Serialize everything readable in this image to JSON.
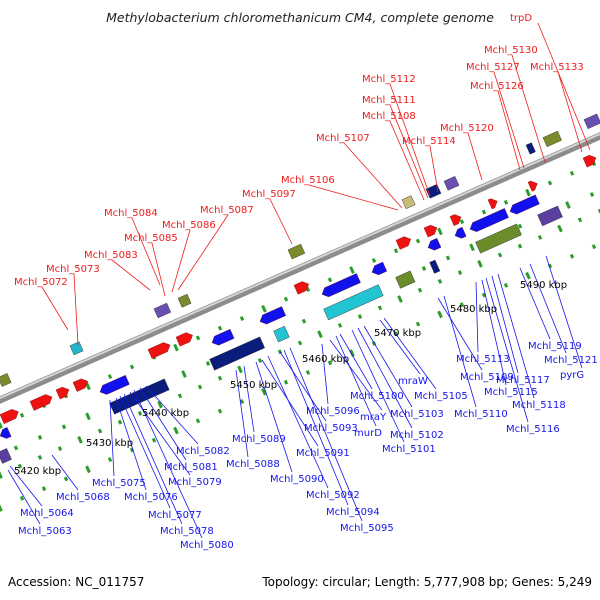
{
  "title": "Methylobacterium chloromethanicum CM4, complete genome",
  "footer": {
    "accession": "Accession: NC_011757",
    "summary": "Topology: circular; Length: 5,777,908 bp; Genes: 5,249"
  },
  "colors": {
    "forward_label": "#ee1c1c",
    "reverse_label": "#1515ee",
    "forward_gene": "#ee1111",
    "reverse_gene": "#1111ee",
    "dot_green": "#2a9d2a",
    "backbone": "#8c8c8c"
  },
  "kbp_labels": [
    "5420 kbp",
    "5430 kbp",
    "5440 kbp",
    "5450 kbp",
    "5460 kbp",
    "5470 kbp",
    "5480 kbp",
    "5490 kbp"
  ],
  "forward_gene_labels": [
    "Mchl_5072",
    "Mchl_5073",
    "Mchl_5083",
    "Mchl_5084",
    "Mchl_5085",
    "Mchl_5086",
    "Mchl_5087",
    "Mchl_5097",
    "Mchl_5106",
    "Mchl_5107",
    "Mchl_5108",
    "Mchl_5111",
    "Mchl_5112",
    "Mchl_5114",
    "Mchl_5120",
    "Mchl_5126",
    "Mchl_5127",
    "Mchl_5130",
    "Mchl_5133",
    "trpD"
  ],
  "reverse_gene_labels": [
    "Mchl_5063",
    "Mchl_5064",
    "Mchl_5068",
    "Mchl_5075",
    "Mchl_5076",
    "Mchl_5077",
    "Mchl_5078",
    "Mchl_5079",
    "Mchl_5080",
    "Mchl_5081",
    "Mchl_5082",
    "Mchl_5088",
    "Mchl_5089",
    "Mchl_5090",
    "Mchl_5091",
    "Mchl_5092",
    "Mchl_5093",
    "Mchl_5094",
    "Mchl_5095",
    "Mchl_5096",
    "mraY",
    "murD",
    "Mchl_5100",
    "Mchl_5101",
    "Mchl_5102",
    "Mchl_5103",
    "mraW",
    "Mchl_5105",
    "Mchl_5109",
    "Mchl_5110",
    "Mchl_5113",
    "Mchl_5115",
    "Mchl_5116",
    "Mchl_5117",
    "Mchl_5118",
    "Mchl_5119",
    "Mchl_5121",
    "pyrG"
  ]
}
